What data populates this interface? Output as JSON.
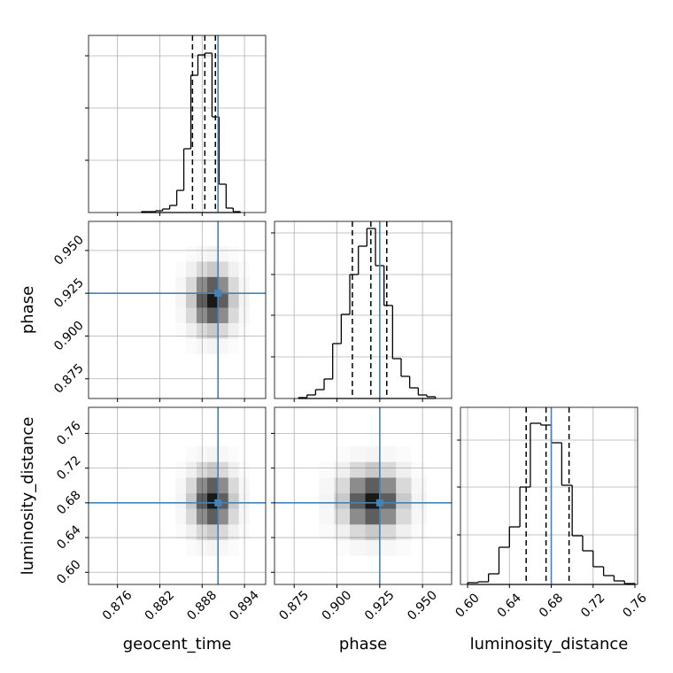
{
  "chart_data": {
    "type": "corner",
    "parameters": [
      {
        "label": "geocent_time",
        "lim": [
          0.8719,
          0.897
        ],
        "ticks": [
          0.876,
          0.882,
          0.888,
          0.894
        ]
      },
      {
        "label": "phase",
        "lim": [
          0.8635,
          0.967
        ],
        "ticks": [
          0.875,
          {
            "value": 0.9,
            "label": "0.900"
          },
          0.925,
          {
            "value": 0.95,
            "label": "0.950"
          }
        ]
      },
      {
        "label": "luminosity_distance",
        "lim": [
          0.5932,
          0.7625
        ],
        "ylim": [
          0.586,
          0.79
        ],
        "ticks": [
          {
            "value": 0.6,
            "label": "0.60"
          },
          0.64,
          0.68,
          0.72,
          0.76
        ]
      }
    ],
    "truths": [
      0.89025,
      0.925,
      0.68
    ],
    "truth_color": "#4682b4",
    "quantiles": [
      [
        0.88663,
        0.88838,
        0.88988
      ],
      [
        0.909,
        0.9198,
        0.9291
      ],
      [
        0.656,
        0.675,
        0.697
      ]
    ],
    "histograms": [
      {
        "bins": [
          0.8794,
          0.8804,
          0.8814,
          0.8824,
          0.8834,
          0.8844,
          0.8854,
          0.8864,
          0.8874,
          0.8884,
          0.8894,
          0.8904,
          0.8914,
          0.8924,
          0.8934
        ],
        "counts": [
          1,
          1,
          2,
          4,
          8,
          25,
          72,
          155,
          178,
          180,
          108,
          32,
          5,
          1
        ],
        "ylim": [
          0,
          200
        ],
        "yticks": [
          59,
          118,
          177
        ]
      },
      {
        "bins": [
          0.8775,
          0.8825,
          0.8875,
          0.8925,
          0.8975,
          0.9025,
          0.9075,
          0.9125,
          0.9175,
          0.9225,
          0.9275,
          0.9325,
          0.9375,
          0.9425,
          0.9475,
          0.9525,
          0.9575
        ],
        "counts": [
          1,
          4,
          10,
          22,
          62,
          95,
          140,
          172,
          192,
          150,
          105,
          45,
          25,
          12,
          4,
          2
        ],
        "ylim": [
          0,
          200
        ],
        "yticks": [
          47,
          94,
          140,
          187
        ]
      },
      {
        "bins": [
          0.6,
          0.61,
          0.62,
          0.63,
          0.64,
          0.65,
          0.66,
          0.67,
          0.68,
          0.69,
          0.7,
          0.71,
          0.72,
          0.73,
          0.74,
          0.75,
          0.76
        ],
        "counts": [
          2,
          3,
          12,
          42,
          65,
          110,
          182,
          180,
          160,
          112,
          55,
          38,
          20,
          10,
          4,
          1
        ],
        "ylim": [
          0,
          200
        ],
        "yticks": [
          56,
          110,
          163
        ]
      }
    ],
    "pairs": [
      {
        "x": 0,
        "y": 1,
        "xbins": [
          0.8842,
          0.8857,
          0.8872,
          0.8887,
          0.8902,
          0.8917,
          0.8932,
          0.8947
        ],
        "ybins": [
          0.8895,
          0.8985,
          0.9075,
          0.9165,
          0.9255,
          0.9345,
          0.9435,
          0.9525
        ],
        "counts": [
          [
            0,
            1,
            2,
            3,
            2,
            1,
            0
          ],
          [
            1,
            4,
            10,
            14,
            10,
            4,
            1
          ],
          [
            2,
            10,
            30,
            42,
            30,
            10,
            2
          ],
          [
            3,
            14,
            42,
            60,
            42,
            14,
            3
          ],
          [
            2,
            10,
            30,
            42,
            30,
            10,
            2
          ],
          [
            1,
            4,
            10,
            14,
            10,
            4,
            1
          ],
          [
            0,
            1,
            2,
            3,
            2,
            1,
            0
          ]
        ]
      },
      {
        "x": 0,
        "y": 2,
        "xbins": [
          0.8842,
          0.8857,
          0.8872,
          0.8887,
          0.8902,
          0.8917,
          0.8932,
          0.8947
        ],
        "ybins": [
          0.619,
          0.637,
          0.655,
          0.673,
          0.691,
          0.709,
          0.727,
          0.745
        ],
        "counts": [
          [
            0,
            1,
            2,
            3,
            2,
            1,
            0
          ],
          [
            1,
            4,
            10,
            14,
            10,
            4,
            1
          ],
          [
            2,
            10,
            30,
            42,
            30,
            10,
            2
          ],
          [
            3,
            14,
            42,
            60,
            42,
            14,
            3
          ],
          [
            2,
            10,
            30,
            42,
            30,
            10,
            2
          ],
          [
            1,
            4,
            10,
            14,
            10,
            4,
            1
          ],
          [
            0,
            1,
            2,
            3,
            2,
            1,
            0
          ]
        ]
      },
      {
        "x": 1,
        "y": 2,
        "xbins": [
          0.8895,
          0.8985,
          0.9075,
          0.9165,
          0.9255,
          0.9345,
          0.9435,
          0.9525
        ],
        "ybins": [
          0.619,
          0.637,
          0.655,
          0.673,
          0.691,
          0.709,
          0.727,
          0.745
        ],
        "counts": [
          [
            0,
            1,
            2,
            3,
            2,
            1,
            0
          ],
          [
            1,
            4,
            10,
            14,
            10,
            4,
            1
          ],
          [
            2,
            10,
            30,
            42,
            30,
            10,
            2
          ],
          [
            3,
            14,
            42,
            60,
            42,
            14,
            3
          ],
          [
            2,
            10,
            30,
            42,
            30,
            10,
            2
          ],
          [
            1,
            4,
            10,
            14,
            10,
            4,
            1
          ],
          [
            0,
            1,
            2,
            3,
            2,
            1,
            0
          ]
        ]
      }
    ],
    "grid": true
  }
}
